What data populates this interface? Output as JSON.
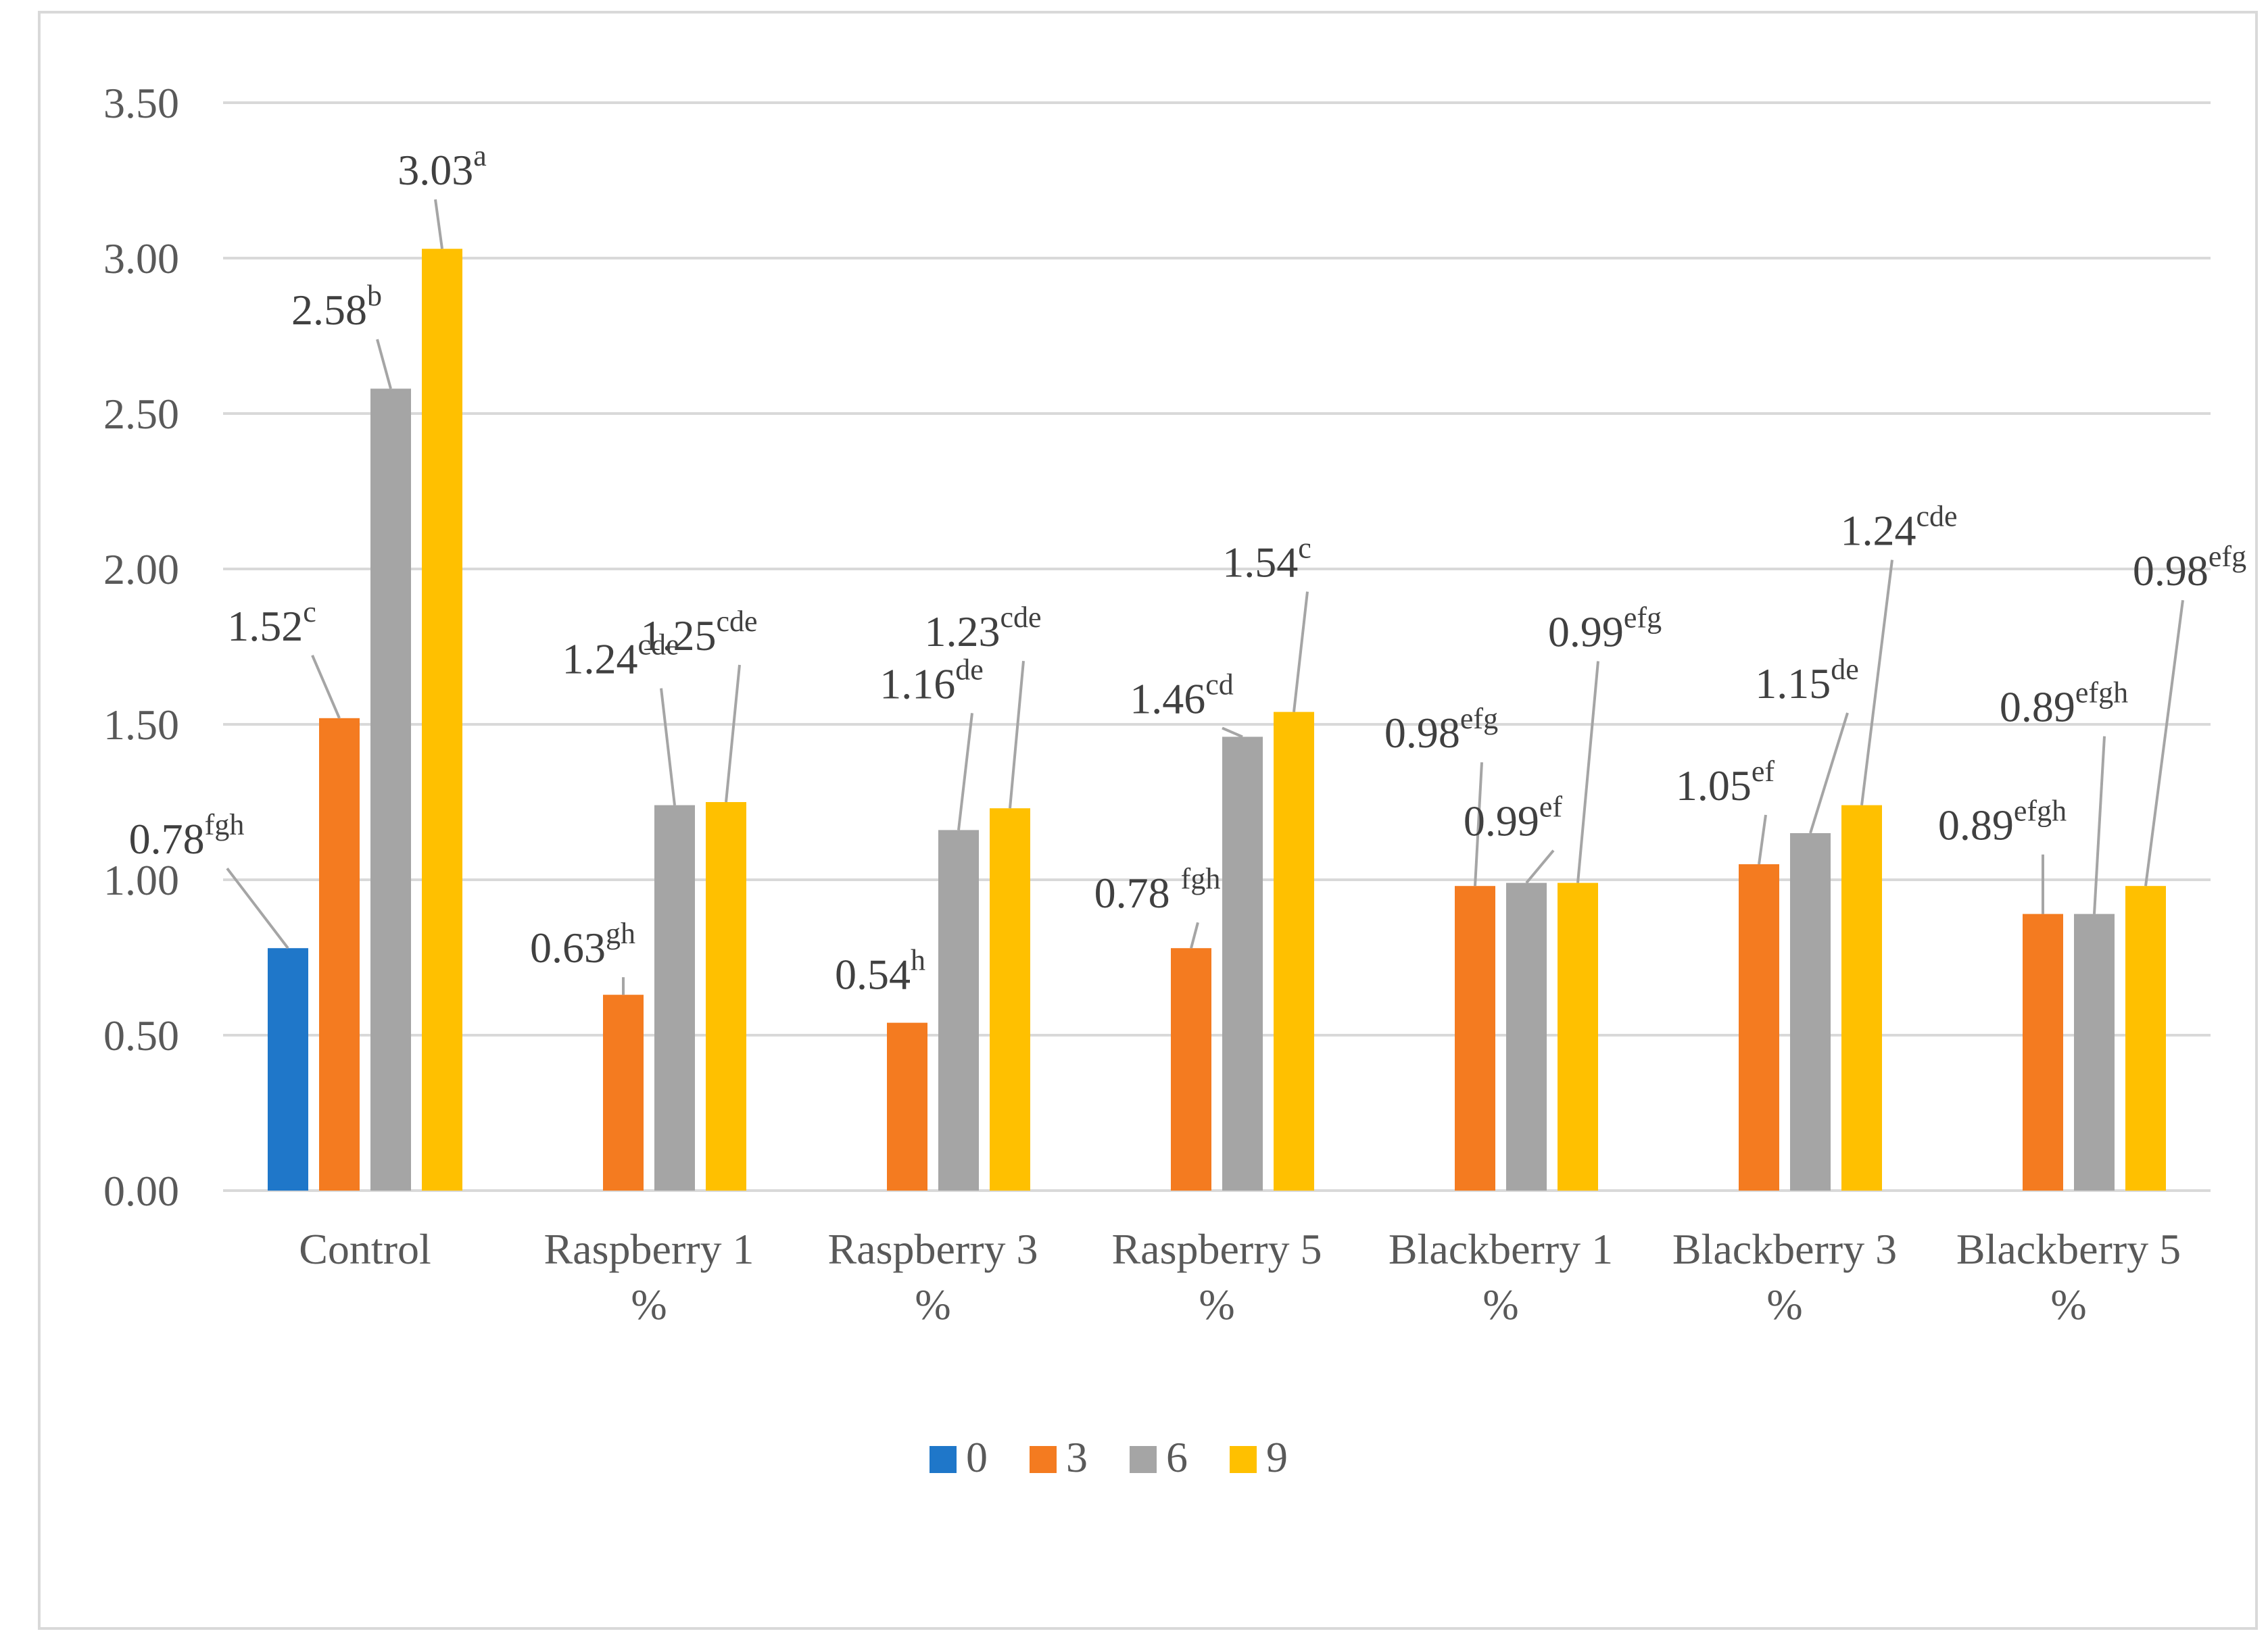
{
  "chart_data": {
    "type": "bar",
    "title": "",
    "xlabel": "",
    "ylabel": "",
    "ylim": [
      0,
      3.5
    ],
    "yticks": [
      "0.00",
      "0.50",
      "1.00",
      "1.50",
      "2.00",
      "2.50",
      "3.00",
      "3.50"
    ],
    "grid": true,
    "legend_position": "bottom",
    "categories": [
      [
        "Control"
      ],
      [
        "Raspberry 1",
        "%"
      ],
      [
        "Raspberry 3",
        "%"
      ],
      [
        "Raspberry 5",
        "%"
      ],
      [
        "Blackberry 1",
        "%"
      ],
      [
        "Blackberry 3",
        "%"
      ],
      [
        "Blackberry 5",
        "%"
      ]
    ],
    "series": [
      {
        "name": "0",
        "color": "#1f77c9",
        "values": [
          0.78,
          null,
          null,
          null,
          null,
          null,
          null
        ],
        "labels": [
          [
            "0.78",
            "fgh"
          ],
          null,
          null,
          null,
          null,
          null,
          null
        ]
      },
      {
        "name": "3",
        "color": "#f47b20",
        "values": [
          1.52,
          0.63,
          0.54,
          0.78,
          0.98,
          1.05,
          0.89
        ],
        "labels": [
          [
            "1.52",
            "c"
          ],
          [
            "0.63",
            "gh"
          ],
          [
            "0.54",
            "h"
          ],
          [
            "0.78 ",
            "fgh"
          ],
          [
            "0.98",
            "efg"
          ],
          [
            "1.05",
            "ef"
          ],
          [
            "0.89",
            "efgh"
          ]
        ]
      },
      {
        "name": "6",
        "color": "#a5a5a5",
        "values": [
          2.58,
          1.24,
          1.16,
          1.46,
          0.99,
          1.15,
          0.89
        ],
        "labels": [
          [
            "2.58",
            "b"
          ],
          [
            "1.24",
            "cde"
          ],
          [
            "1.16",
            "de"
          ],
          [
            "1.46",
            "cd"
          ],
          [
            "0.99",
            "ef"
          ],
          [
            "1.15",
            "de"
          ],
          [
            "0.89",
            "efgh"
          ]
        ]
      },
      {
        "name": "9",
        "color": "#ffc000",
        "values": [
          3.03,
          1.25,
          1.23,
          1.54,
          0.99,
          1.24,
          0.98
        ],
        "labels": [
          [
            "3.03",
            "a"
          ],
          [
            "1.25",
            "cde"
          ],
          [
            "1.23",
            "cde"
          ],
          [
            "1.54",
            "c"
          ],
          [
            "0.99",
            "efg"
          ],
          [
            "1.24",
            "cde"
          ],
          [
            "0.98",
            "efg"
          ]
        ]
      }
    ]
  }
}
